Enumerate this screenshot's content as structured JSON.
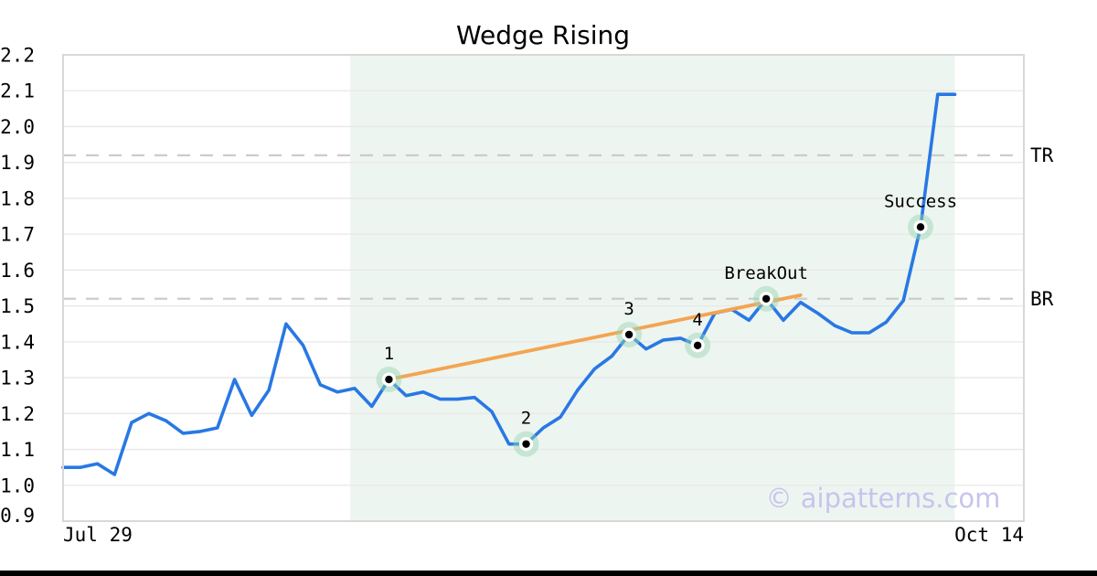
{
  "title": "Wedge Rising",
  "watermark": "© aipatterns.com",
  "x_axis": {
    "start_label": "Jul 29",
    "end_label": "Oct 14"
  },
  "y_axis": {
    "min": 0.9,
    "max": 2.2,
    "step": 0.1,
    "tick_labels": [
      "0.9",
      "1.0",
      "1.1",
      "1.2",
      "1.3",
      "1.4",
      "1.5",
      "1.6",
      "1.7",
      "1.8",
      "1.9",
      "2.0",
      "2.1",
      "2.2"
    ]
  },
  "chart_data": {
    "type": "line",
    "title": "Wedge Rising",
    "x_start_label": "Jul 29",
    "x_end_label": "Oct 14",
    "ylabel": "",
    "xlabel": "",
    "ylim": [
      0.9,
      2.2
    ],
    "grid": true,
    "legend": null,
    "values": [
      1.05,
      1.05,
      1.06,
      1.03,
      1.175,
      1.2,
      1.18,
      1.145,
      1.15,
      1.16,
      1.295,
      1.195,
      1.265,
      1.45,
      1.39,
      1.28,
      1.26,
      1.27,
      1.22,
      1.295,
      1.25,
      1.26,
      1.24,
      1.24,
      1.245,
      1.205,
      1.115,
      1.115,
      1.16,
      1.19,
      1.265,
      1.325,
      1.36,
      1.42,
      1.38,
      1.405,
      1.41,
      1.39,
      1.48,
      1.49,
      1.46,
      1.52,
      1.46,
      1.51,
      1.48,
      1.445,
      1.425,
      1.425,
      1.455,
      1.515,
      1.72,
      2.09,
      2.09
    ],
    "markers": [
      {
        "index": 19,
        "label": "1",
        "value": 1.295
      },
      {
        "index": 27,
        "label": "2",
        "value": 1.115
      },
      {
        "index": 33,
        "label": "3",
        "value": 1.42
      },
      {
        "index": 37,
        "label": "4",
        "value": 1.39
      },
      {
        "index": 41,
        "label": "BreakOut",
        "value": 1.52
      },
      {
        "index": 50,
        "label": "Success",
        "value": 1.72
      }
    ],
    "trendline": {
      "from_index": 19,
      "from_value": 1.295,
      "to_index": 43,
      "to_value": 1.53
    },
    "levels": [
      {
        "label": "TR",
        "value": 1.92
      },
      {
        "label": "BR",
        "value": 1.52
      }
    ],
    "shaded_region": {
      "from_index": 16.74,
      "to_index": 52
    }
  },
  "colors": {
    "price_line": "#2878e4",
    "trend_line": "#f4a451",
    "marker_halo": "#97d4b1",
    "marker_dot": "#000000",
    "marker_ring": "#ffffff",
    "shade": "#edf5f0",
    "grid": "#e8e8e8",
    "dashed_level": "#cccccc",
    "plot_border": "#d8d8d8",
    "text": "#000000",
    "watermark": "#c5c5ee",
    "footer_bar": "#000000"
  }
}
